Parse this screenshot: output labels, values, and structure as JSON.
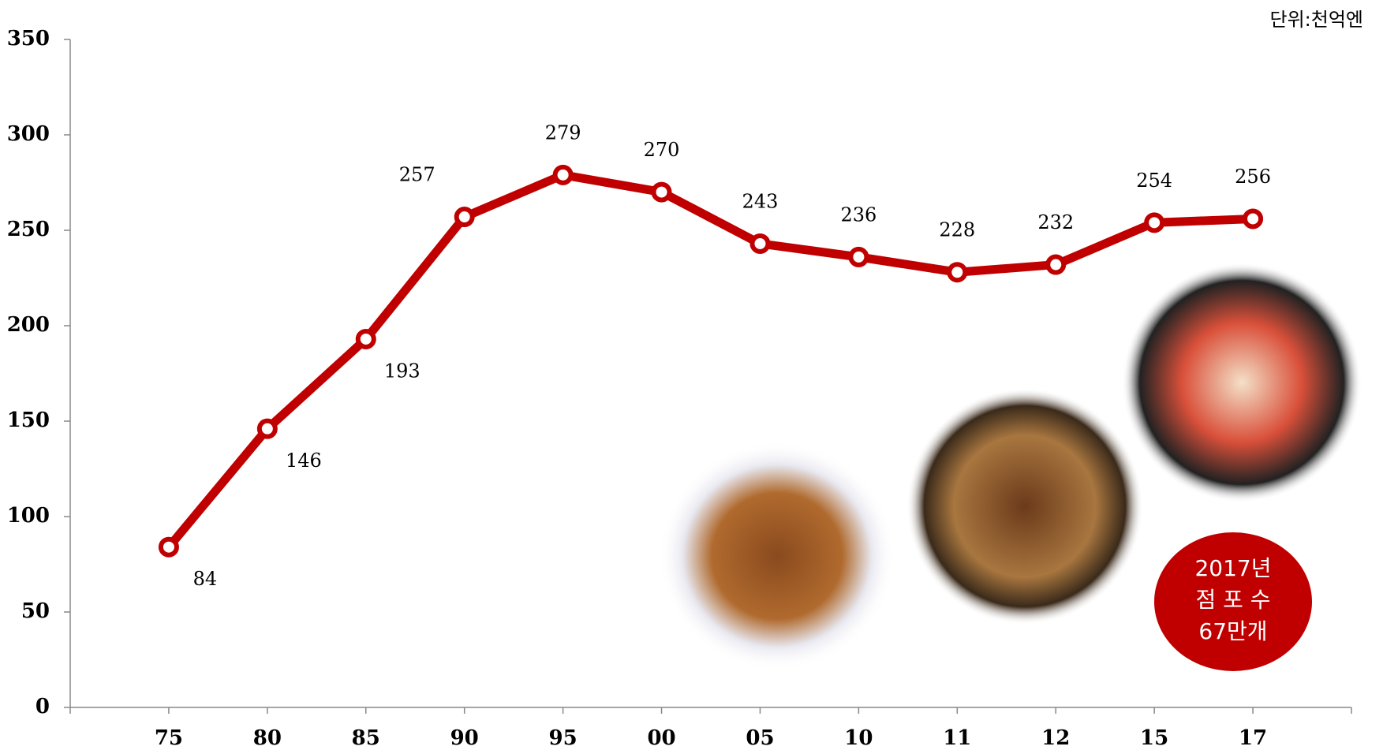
{
  "chart_data": {
    "type": "line",
    "unit": "단위:천억엔",
    "categories": [
      "75",
      "80",
      "85",
      "90",
      "95",
      "00",
      "05",
      "10",
      "11",
      "12",
      "15",
      "17"
    ],
    "values": [
      84,
      146,
      193,
      257,
      279,
      270,
      243,
      236,
      228,
      232,
      254,
      256
    ],
    "color": "#c00000",
    "ylim": [
      0,
      350
    ],
    "yticks": [
      0,
      50,
      100,
      150,
      200,
      250,
      300,
      350
    ],
    "grid": false,
    "annotation": [
      "2017년",
      "점 포 수",
      "67만개"
    ]
  }
}
